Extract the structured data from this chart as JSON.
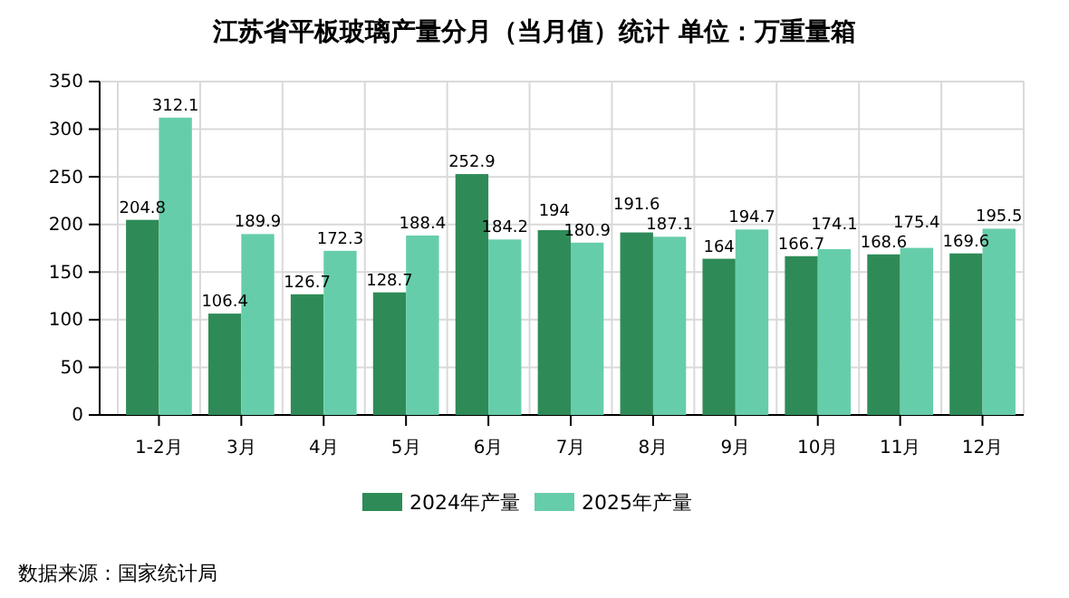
{
  "chart_data": {
    "type": "bar",
    "title": "江苏省平板玻璃产量分月（当月值）统计  单位：万重量箱",
    "categories": [
      "1-2月",
      "3月",
      "4月",
      "5月",
      "6月",
      "7月",
      "8月",
      "9月",
      "10月",
      "11月",
      "12月"
    ],
    "series": [
      {
        "name": "2024年产量",
        "color": "#2e8b57",
        "values": [
          204.8,
          106.4,
          126.7,
          128.7,
          252.9,
          194,
          191.6,
          164,
          166.7,
          168.6,
          169.6
        ]
      },
      {
        "name": "2025年产量",
        "color": "#66cdaa",
        "values": [
          312.1,
          189.9,
          172.3,
          188.4,
          184.2,
          180.9,
          187.1,
          194.7,
          174.1,
          175.4,
          195.5
        ]
      }
    ],
    "ylim": [
      0,
      350
    ],
    "yticks": [
      0,
      50,
      100,
      150,
      200,
      250,
      300,
      350
    ],
    "grid": true,
    "legend": "bottom",
    "data_labels": true,
    "annotations": [
      "数据来源：国家统计局"
    ]
  }
}
